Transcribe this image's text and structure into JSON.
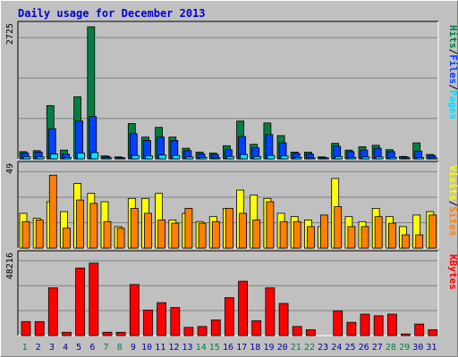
{
  "chart_data": {
    "title": "Daily usage for December 2013",
    "type": "bar",
    "x": [
      "1",
      "2",
      "3",
      "4",
      "5",
      "6",
      "7",
      "8",
      "9",
      "10",
      "11",
      "12",
      "13",
      "14",
      "15",
      "16",
      "17",
      "18",
      "19",
      "20",
      "21",
      "22",
      "23",
      "24",
      "25",
      "26",
      "27",
      "28",
      "29",
      "30",
      "31"
    ],
    "weekend_days": [
      "1",
      "7",
      "8",
      "14",
      "15",
      "21",
      "22",
      "28",
      "29"
    ],
    "colors": {
      "hits": "#008040",
      "files": "#0040ff",
      "pages": "#00e0ff",
      "visits": "#ffff00",
      "sites": "#ff8000",
      "kbytes": "#ff0000",
      "weekday_label": "#0000a0",
      "weekend_label": "#008040",
      "plot_bg": "#c0c0c0",
      "grid": "#808080"
    },
    "panels": [
      {
        "id": "hits",
        "max_label": "2725",
        "max": 2725,
        "side_label_parts": [
          {
            "text": "Hits",
            "color": "#008040"
          },
          {
            "text": "/",
            "color": "#000000"
          },
          {
            "text": "Files",
            "color": "#0040ff"
          },
          {
            "text": "/",
            "color": "#000000"
          },
          {
            "text": "Pages",
            "color": "#00e0ff"
          }
        ],
        "series": [
          {
            "name": "Hits",
            "color": "#008040",
            "values": [
              150,
              170,
              1100,
              180,
              1280,
              2725,
              60,
              40,
              730,
              450,
              650,
              450,
              220,
              140,
              120,
              270,
              780,
              300,
              740,
              480,
              140,
              140,
              40,
              320,
              180,
              250,
              280,
              190,
              50,
              330,
              90
            ]
          },
          {
            "name": "Files",
            "color": "#0040ff",
            "values": [
              120,
              140,
              620,
              100,
              780,
              870,
              50,
              30,
              520,
              380,
              450,
              380,
              170,
              100,
              90,
              190,
              460,
              230,
              500,
              330,
              110,
              100,
              30,
              260,
              150,
              180,
              220,
              150,
              40,
              160,
              70
            ]
          },
          {
            "name": "Pages",
            "color": "#00e0ff",
            "values": [
              40,
              40,
              100,
              30,
              120,
              130,
              20,
              10,
              70,
              60,
              80,
              70,
              40,
              30,
              20,
              50,
              90,
              50,
              70,
              60,
              30,
              20,
              10,
              50,
              30,
              40,
              40,
              30,
              10,
              30,
              20
            ]
          }
        ]
      },
      {
        "id": "visits",
        "max_label": "49",
        "max": 49,
        "side_label_parts": [
          {
            "text": "Visits",
            "color": "#ffff00"
          },
          {
            "text": "/",
            "color": "#000000"
          },
          {
            "text": "Sites",
            "color": "#ff8000"
          }
        ],
        "series": [
          {
            "name": "Visits",
            "color": "#ffff00",
            "values": [
              21,
              18,
              28,
              22,
              39,
              33,
              28,
              13,
              30,
              30,
              33,
              17,
              21,
              16,
              19,
              24,
              35,
              32,
              30,
              21,
              19,
              17,
              13,
              42,
              19,
              16,
              24,
              19,
              13,
              20,
              22
            ]
          },
          {
            "name": "Sites",
            "color": "#ff8000",
            "values": [
              16,
              17,
              44,
              12,
              29,
              27,
              16,
              12,
              24,
              21,
              17,
              15,
              24,
              15,
              16,
              24,
              21,
              17,
              28,
              16,
              16,
              13,
              20,
              25,
              13,
              13,
              19,
              15,
              8,
              8,
              20
            ]
          }
        ]
      },
      {
        "id": "kbytes",
        "max_label": "48216",
        "max": 48216,
        "side_label_parts": [
          {
            "text": "KBytes",
            "color": "#ff0000"
          }
        ],
        "series": [
          {
            "name": "KBytes",
            "color": "#ff0000",
            "values": [
              8500,
              8500,
              29000,
              2000,
              41000,
              44000,
              2000,
              2000,
              31000,
              15500,
              20000,
              17000,
              5000,
              5500,
              9500,
              23000,
              33000,
              9000,
              29000,
              19500,
              5500,
              3500,
              0,
              15000,
              8000,
              13000,
              12000,
              13000,
              1000,
              7000,
              3500
            ]
          }
        ]
      }
    ]
  }
}
